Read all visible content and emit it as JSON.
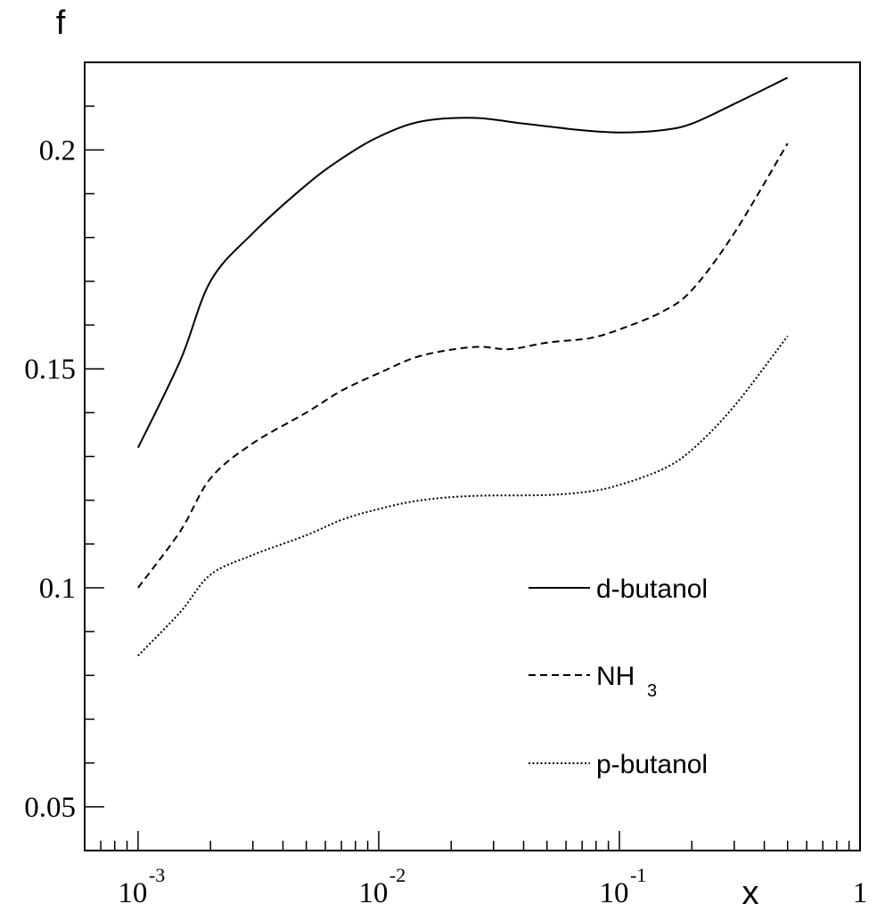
{
  "chart_data": {
    "type": "line",
    "xlabel": "x",
    "ylabel": "f",
    "xscale": "log",
    "xlim": [
      0.0006,
      1
    ],
    "ylim": [
      0.04,
      0.22
    ],
    "grid": false,
    "legend_position": "bottom-right",
    "x_ticks": [
      {
        "value": 0.001,
        "base": "10",
        "exp": "-3"
      },
      {
        "value": 0.01,
        "base": "10",
        "exp": "-2"
      },
      {
        "value": 0.1,
        "base": "10",
        "exp": "-1"
      },
      {
        "value": 1,
        "base": "1",
        "exp": ""
      }
    ],
    "y_ticks": [
      {
        "value": 0.05,
        "label": "0.05"
      },
      {
        "value": 0.1,
        "label": "0.1"
      },
      {
        "value": 0.15,
        "label": "0.15"
      },
      {
        "value": 0.2,
        "label": "0.2"
      }
    ],
    "series": [
      {
        "name": "d-butanol",
        "style": "solid",
        "points": [
          [
            0.001,
            0.132
          ],
          [
            0.0015,
            0.152
          ],
          [
            0.002,
            0.17
          ],
          [
            0.003,
            0.181
          ],
          [
            0.005,
            0.192
          ],
          [
            0.007,
            0.198
          ],
          [
            0.01,
            0.203
          ],
          [
            0.015,
            0.2065
          ],
          [
            0.025,
            0.2073
          ],
          [
            0.04,
            0.206
          ],
          [
            0.07,
            0.2045
          ],
          [
            0.1,
            0.204
          ],
          [
            0.15,
            0.2045
          ],
          [
            0.2,
            0.206
          ],
          [
            0.3,
            0.2105
          ],
          [
            0.5,
            0.2165
          ]
        ]
      },
      {
        "name": "NH3",
        "label_main": "NH",
        "label_sub": "3",
        "style": "dashed",
        "points": [
          [
            0.001,
            0.1
          ],
          [
            0.0015,
            0.113
          ],
          [
            0.002,
            0.125
          ],
          [
            0.003,
            0.133
          ],
          [
            0.005,
            0.14
          ],
          [
            0.007,
            0.145
          ],
          [
            0.01,
            0.149
          ],
          [
            0.015,
            0.153
          ],
          [
            0.025,
            0.155
          ],
          [
            0.035,
            0.1545
          ],
          [
            0.05,
            0.156
          ],
          [
            0.075,
            0.157
          ],
          [
            0.1,
            0.159
          ],
          [
            0.15,
            0.163
          ],
          [
            0.2,
            0.168
          ],
          [
            0.3,
            0.181
          ],
          [
            0.5,
            0.2015
          ]
        ]
      },
      {
        "name": "p-butanol",
        "style": "dotted",
        "points": [
          [
            0.001,
            0.0845
          ],
          [
            0.0015,
            0.0945
          ],
          [
            0.002,
            0.103
          ],
          [
            0.003,
            0.1075
          ],
          [
            0.005,
            0.112
          ],
          [
            0.007,
            0.1155
          ],
          [
            0.01,
            0.118
          ],
          [
            0.015,
            0.12
          ],
          [
            0.025,
            0.121
          ],
          [
            0.05,
            0.1212
          ],
          [
            0.075,
            0.122
          ],
          [
            0.1,
            0.1235
          ],
          [
            0.15,
            0.127
          ],
          [
            0.2,
            0.1315
          ],
          [
            0.3,
            0.1415
          ],
          [
            0.5,
            0.1575
          ]
        ]
      }
    ]
  }
}
